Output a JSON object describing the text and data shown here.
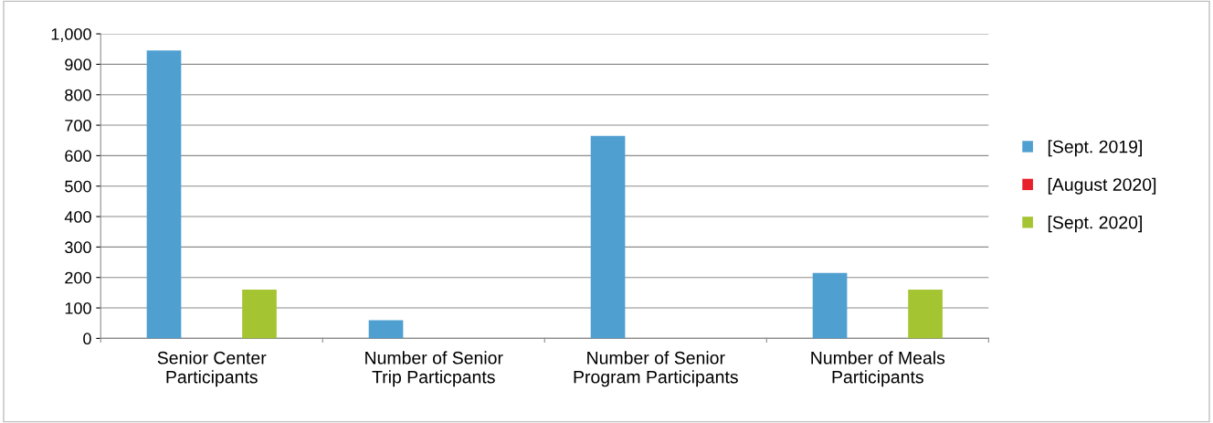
{
  "chart_data": {
    "type": "bar",
    "categories": [
      "Senior Center Participants",
      "Number of Senior Trip Particpants",
      "Number of Senior Program Participants",
      "Number of Meals Participants"
    ],
    "series": [
      {
        "name": "[Sept. 2019]",
        "color": "#4f9fd0",
        "values": [
          945,
          60,
          665,
          215
        ]
      },
      {
        "name": "[August 2020]",
        "color": "#e8202a",
        "values": [
          0,
          0,
          0,
          0
        ]
      },
      {
        "name": "[Sept. 2020]",
        "color": "#a5c432",
        "values": [
          160,
          0,
          0,
          160
        ]
      }
    ],
    "ylim": [
      0,
      1000
    ],
    "yticks": [
      0,
      100,
      200,
      300,
      400,
      500,
      600,
      700,
      800,
      900,
      {
        "value": 1000,
        "label": "1,000"
      }
    ],
    "grid": "y",
    "legend": "right"
  }
}
